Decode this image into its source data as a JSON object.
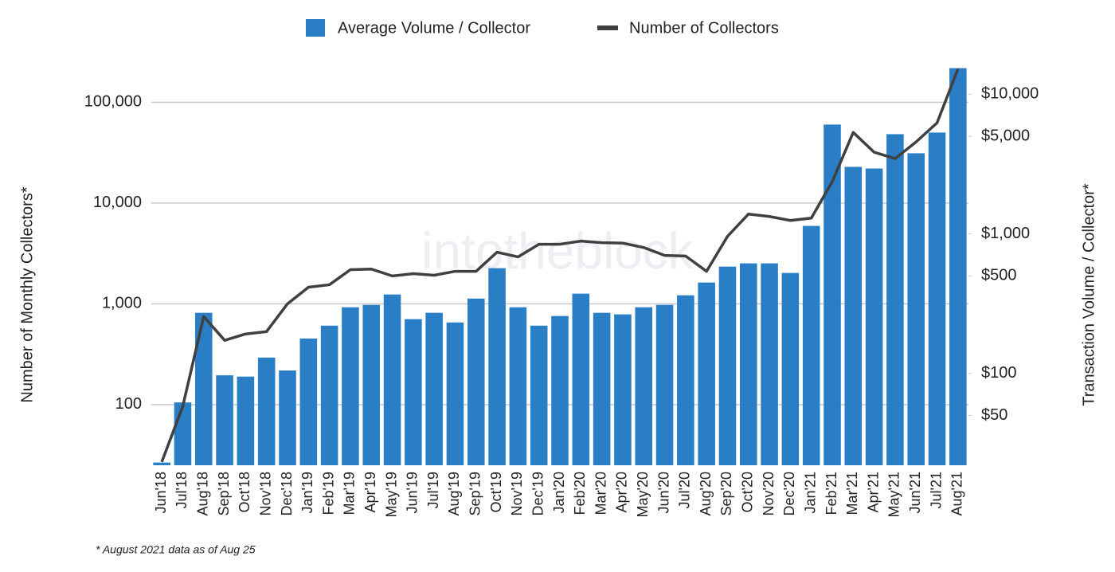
{
  "chart_data": {
    "type": "bar",
    "log_scale": true,
    "grid": true,
    "legend_position": "top",
    "watermark": "intotheblock",
    "ylabel": "Number of Monthly Collectors*",
    "y2label": "Transaction Volume / Collector*",
    "footnote": "* August 2021 data as of Aug 25",
    "categories": [
      "Jun'18",
      "Jul'18",
      "Aug'18",
      "Sep'18",
      "Oct'18",
      "Nov'18",
      "Dec'18",
      "Jan'19",
      "Feb'19",
      "Mar'19",
      "Apr'19",
      "May'19",
      "Jun'19",
      "Jul'19",
      "Aug'19",
      "Sep'19",
      "Oct'19",
      "Nov'19",
      "Dec'19",
      "Jan'20",
      "Feb'20",
      "Mar'20",
      "Apr'20",
      "May'20",
      "Jun'20",
      "Jul'20",
      "Aug'20",
      "Sep'20",
      "Oct'20",
      "Nov'20",
      "Dec'20",
      "Jan'21",
      "Feb'21",
      "Mar'21",
      "Apr'21",
      "May'21",
      "Jun'21",
      "Jul'21",
      "Aug'21"
    ],
    "series": [
      {
        "name": "Average Volume / Collector",
        "type": "bar",
        "axis": "y2",
        "color": "#2a7ec6",
        "values": [
          23,
          62,
          272,
          97,
          95,
          130,
          105,
          178,
          220,
          298,
          310,
          368,
          245,
          272,
          232,
          344,
          568,
          298,
          220,
          258,
          373,
          272,
          265,
          298,
          310,
          363,
          448,
          583,
          615,
          615,
          525,
          1140,
          6070,
          3020,
          2940,
          5180,
          3780,
          5320,
          15400
        ]
      },
      {
        "name": "Number of Collectors",
        "type": "line",
        "axis": "y",
        "color": "#404040",
        "values": [
          27,
          96,
          748,
          434,
          502,
          530,
          1000,
          1460,
          1545,
          2180,
          2210,
          1890,
          1990,
          1920,
          2100,
          2100,
          3250,
          2920,
          3900,
          3900,
          4190,
          4040,
          4000,
          3620,
          3020,
          2980,
          2100,
          4670,
          7770,
          7350,
          6710,
          7090,
          16300,
          50200,
          31900,
          27600,
          40400,
          62400,
          214000
        ]
      }
    ],
    "ylim": [
      25,
      250000
    ],
    "yticks": [
      100,
      {
        "value": 1000,
        "label": "1,000"
      },
      {
        "value": 10000,
        "label": "10,000"
      },
      {
        "value": 100000,
        "label": "100,000"
      }
    ],
    "y2lim": [
      22,
      17000
    ],
    "y2ticks": [
      {
        "value": 50,
        "label": "$50"
      },
      {
        "value": 100,
        "label": "$100"
      },
      {
        "value": 500,
        "label": "$500"
      },
      {
        "value": 1000,
        "label": "$1,000"
      },
      {
        "value": 5000,
        "label": "$5,000"
      },
      {
        "value": 10000,
        "label": "$10,000"
      }
    ]
  }
}
